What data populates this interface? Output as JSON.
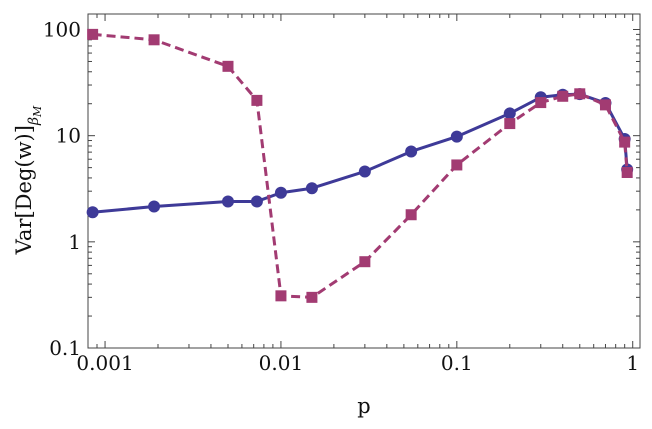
{
  "chart_data": {
    "type": "line",
    "xscale": "log",
    "yscale": "log",
    "xlim": [
      0.0008,
      1.1
    ],
    "ylim": [
      0.1,
      140
    ],
    "xlabel": "p",
    "ylabel": "Var[Deg(w)]βM",
    "ylabel_parts": {
      "main": "Var[Deg(w)]",
      "sub_greek": "β",
      "sub_letter": "M"
    },
    "xticks": [
      {
        "value": 0.001,
        "label": "0.001"
      },
      {
        "value": 0.01,
        "label": "0.01"
      },
      {
        "value": 0.1,
        "label": "0.1"
      },
      {
        "value": 1,
        "label": "1"
      }
    ],
    "yticks": [
      {
        "value": 0.1,
        "label": "0.1"
      },
      {
        "value": 1,
        "label": "1"
      },
      {
        "value": 10,
        "label": "10"
      },
      {
        "value": 100,
        "label": "100"
      }
    ],
    "grid": false,
    "series": [
      {
        "marker": "circle",
        "line": "solid",
        "color": "#3e3a98",
        "points": [
          {
            "x": 0.00085,
            "y": 1.9
          },
          {
            "x": 0.0019,
            "y": 2.15
          },
          {
            "x": 0.005,
            "y": 2.4
          },
          {
            "x": 0.0073,
            "y": 2.4
          },
          {
            "x": 0.01,
            "y": 2.9
          },
          {
            "x": 0.015,
            "y": 3.2
          },
          {
            "x": 0.03,
            "y": 4.6
          },
          {
            "x": 0.055,
            "y": 7.1
          },
          {
            "x": 0.1,
            "y": 9.8
          },
          {
            "x": 0.2,
            "y": 16.2
          },
          {
            "x": 0.3,
            "y": 23.0
          },
          {
            "x": 0.4,
            "y": 24.3
          },
          {
            "x": 0.5,
            "y": 24.6
          },
          {
            "x": 0.7,
            "y": 20.3
          },
          {
            "x": 0.9,
            "y": 9.3
          },
          {
            "x": 0.93,
            "y": 4.8
          }
        ]
      },
      {
        "marker": "square",
        "line": "dashed",
        "color": "#a23b72",
        "points": [
          {
            "x": 0.00085,
            "y": 90
          },
          {
            "x": 0.0019,
            "y": 80
          },
          {
            "x": 0.005,
            "y": 45
          },
          {
            "x": 0.0073,
            "y": 21.5
          },
          {
            "x": 0.01,
            "y": 0.31
          },
          {
            "x": 0.015,
            "y": 0.3
          },
          {
            "x": 0.03,
            "y": 0.65
          },
          {
            "x": 0.055,
            "y": 1.8
          },
          {
            "x": 0.1,
            "y": 5.3
          },
          {
            "x": 0.2,
            "y": 13.0
          },
          {
            "x": 0.3,
            "y": 20.5
          },
          {
            "x": 0.4,
            "y": 23.5
          },
          {
            "x": 0.5,
            "y": 24.8
          },
          {
            "x": 0.7,
            "y": 19.5
          },
          {
            "x": 0.9,
            "y": 8.7
          },
          {
            "x": 0.93,
            "y": 4.5
          }
        ]
      }
    ]
  }
}
